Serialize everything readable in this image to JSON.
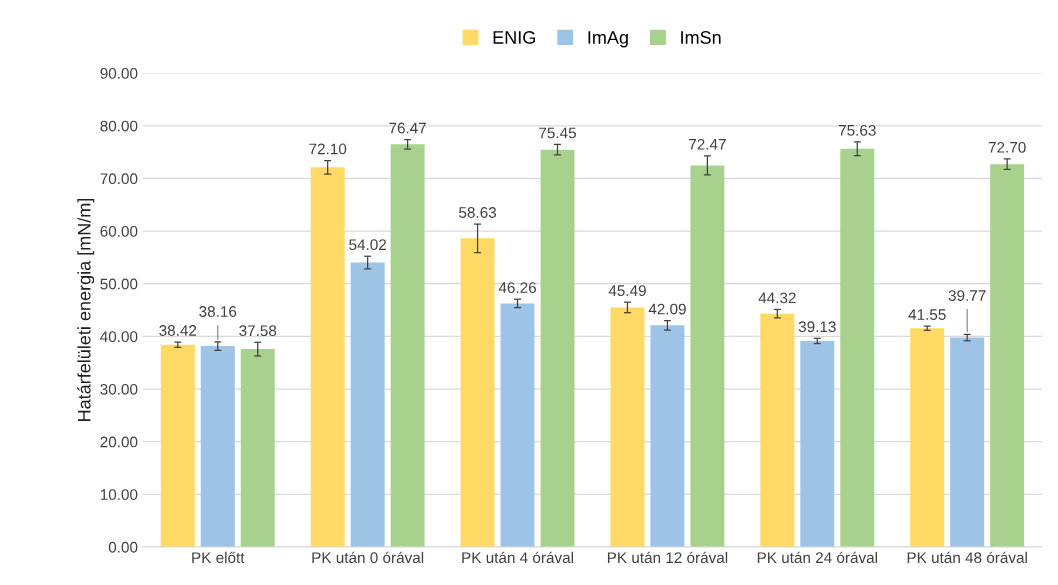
{
  "chart_data": {
    "type": "bar",
    "ylabel": "Határfelületi energia [mN/m]",
    "categories": [
      "PK előtt",
      "PK után 0 órával",
      "PK után 4 órával",
      "PK után 12 órával",
      "PK után 24 órával",
      "PK után 48 órával"
    ],
    "series": [
      {
        "name": "ENIG",
        "color": "#ffd966",
        "values": [
          38.42,
          72.1,
          58.63,
          45.49,
          44.32,
          41.55
        ],
        "errors": [
          0.5,
          1.3,
          2.7,
          1.0,
          0.8,
          0.4
        ],
        "value_labels": [
          "38.42",
          "72.10",
          "58.63",
          "45.49",
          "44.32",
          "41.55"
        ]
      },
      {
        "name": "ImAg",
        "color": "#9dc3e6",
        "values": [
          38.16,
          54.02,
          46.26,
          42.09,
          39.13,
          39.77
        ],
        "errors": [
          0.8,
          1.2,
          0.8,
          0.9,
          0.5,
          0.6
        ],
        "value_labels": [
          "38.16",
          "54.02",
          "46.26",
          "42.09",
          "39.13",
          "39.77"
        ]
      },
      {
        "name": "ImSn",
        "color": "#a9d18e",
        "values": [
          37.58,
          76.47,
          75.45,
          72.47,
          75.63,
          72.7
        ],
        "errors": [
          1.3,
          0.9,
          1.0,
          1.8,
          1.3,
          1.0
        ],
        "value_labels": [
          "37.58",
          "76.47",
          "75.45",
          "72.47",
          "75.63",
          "72.70"
        ]
      }
    ],
    "ylim": [
      0,
      90
    ],
    "yticks": [
      {
        "value": 0,
        "label": "0.00"
      },
      {
        "value": 10,
        "label": "10.00"
      },
      {
        "value": 20,
        "label": "20.00"
      },
      {
        "value": 30,
        "label": "30.00"
      },
      {
        "value": 40,
        "label": "40.00"
      },
      {
        "value": 50,
        "label": "50.00"
      },
      {
        "value": 60,
        "label": "60.00"
      },
      {
        "value": 70,
        "label": "70.00"
      },
      {
        "value": 80,
        "label": "80.00"
      },
      {
        "value": 90,
        "label": "90.00"
      }
    ],
    "grid": "y",
    "legend": "top"
  }
}
